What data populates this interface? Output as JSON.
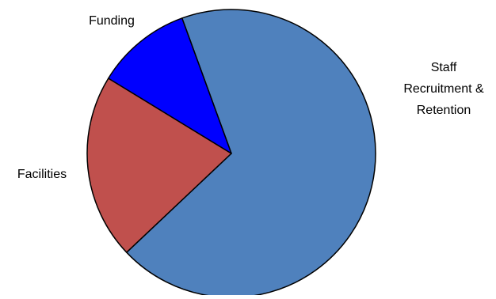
{
  "chart_data": {
    "type": "pie",
    "title": "",
    "slices": [
      {
        "label": "Staff Recruitment & Retention",
        "label_lines": [
          "Staff",
          "Recruitment &",
          "Retention"
        ],
        "value": 68.5,
        "color": "#4f81bd"
      },
      {
        "label": "Facilities",
        "label_lines": [
          "Facilities"
        ],
        "value": 20.8,
        "color": "#c0504d"
      },
      {
        "label": "Funding",
        "label_lines": [
          "Funding"
        ],
        "value": 10.7,
        "color": "#0000ff"
      }
    ],
    "start_angle_deg": -20,
    "direction": "clockwise",
    "legend": "none",
    "border_color": "#000000"
  }
}
